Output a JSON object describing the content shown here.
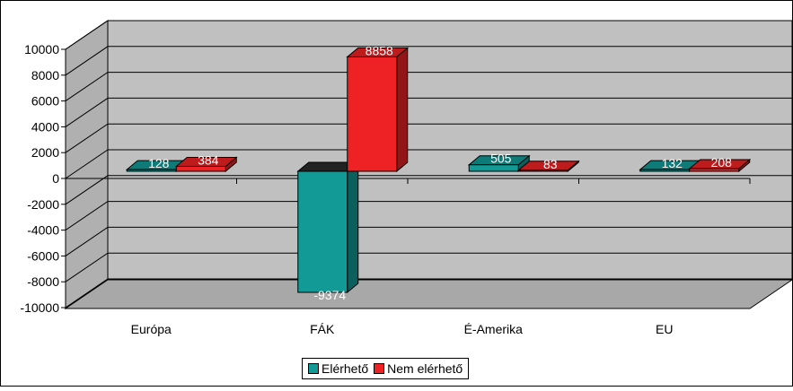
{
  "chart_data": {
    "type": "bar",
    "categories": [
      "Európa",
      "FÁK",
      "É-Amerika",
      "EU"
    ],
    "series": [
      {
        "name": "Elérhető",
        "values": [
          128,
          -9374,
          505,
          132
        ],
        "color": "#119a96"
      },
      {
        "name": "Nem elérhető",
        "values": [
          384,
          8858,
          83,
          208
        ],
        "color": "#ee2224"
      }
    ],
    "data_labels": [
      [
        "128",
        "-9374",
        "505",
        "132"
      ],
      [
        "384",
        "8858",
        "83",
        "208"
      ]
    ],
    "yticks": [
      "10000",
      "8000",
      "6000",
      "4000",
      "2000",
      "0",
      "-2000",
      "-4000",
      "-6000",
      "-8000",
      "-10000"
    ],
    "ylim": [
      -10000,
      10000
    ],
    "style": "3d-clustered-column",
    "grid": true,
    "legend_position": "bottom"
  }
}
